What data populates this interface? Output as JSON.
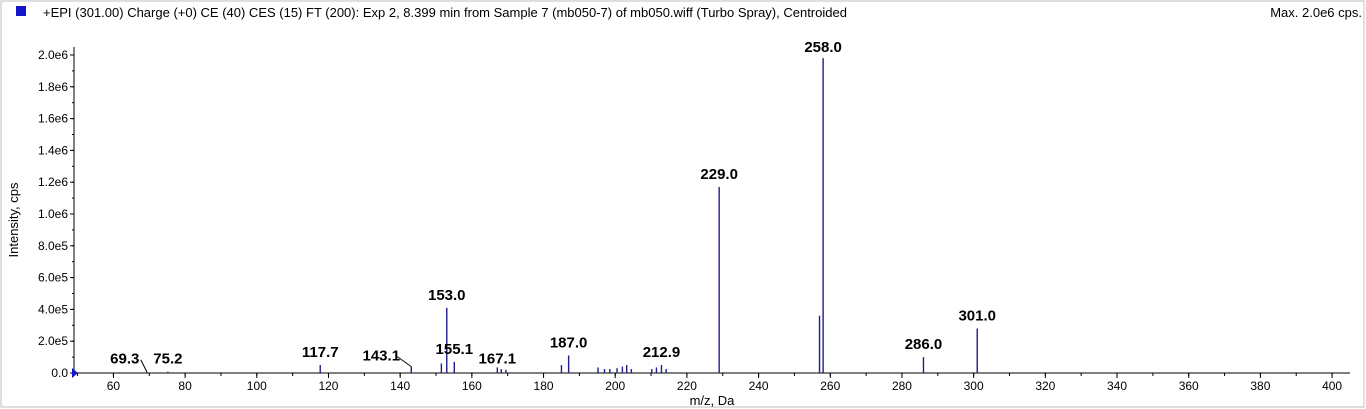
{
  "header": {
    "title": "+EPI (301.00) Charge (+0) CE (40) CES (15) FT (200): Exp 2, 8.399 min from Sample 7 (mb050-7) of mb050.wiff (Turbo Spray), Centroided",
    "max_label": "Max. 2.0e6 cps."
  },
  "colors": {
    "series": "#1e1e8c",
    "swatch": "#1414c8",
    "axis": "#000000",
    "border": "#bfbfbf"
  },
  "chart_data": {
    "type": "bar",
    "xlabel": "m/z, Da",
    "ylabel": "Intensity, cps",
    "xlim": [
      49,
      405
    ],
    "ylim": [
      0,
      2000000
    ],
    "x_ticks": [
      60,
      80,
      100,
      120,
      140,
      160,
      180,
      200,
      220,
      240,
      260,
      280,
      300,
      320,
      340,
      360,
      380,
      400
    ],
    "x_tick_labels": [
      "60",
      "80",
      "100",
      "120",
      "140",
      "160",
      "180",
      "200",
      "220",
      "240",
      "260",
      "280",
      "300",
      "320",
      "340",
      "360",
      "380",
      "400"
    ],
    "y_ticks": [
      0,
      200000,
      400000,
      600000,
      800000,
      1000000,
      1200000,
      1400000,
      1600000,
      1800000,
      2000000
    ],
    "y_tick_labels": [
      "0.0",
      "2.0e5",
      "4.0e5",
      "6.0e5",
      "8.0e5",
      "1.0e6",
      "1.2e6",
      "1.4e6",
      "1.6e6",
      "1.8e6",
      "2.0e6"
    ],
    "peaks": [
      {
        "mz": 69.3,
        "intensity": 8000
      },
      {
        "mz": 75.2,
        "intensity": 8000
      },
      {
        "mz": 117.7,
        "intensity": 50000
      },
      {
        "mz": 143.1,
        "intensity": 40000
      },
      {
        "mz": 151.5,
        "intensity": 60000
      },
      {
        "mz": 153.0,
        "intensity": 410000
      },
      {
        "mz": 155.1,
        "intensity": 70000
      },
      {
        "mz": 167.1,
        "intensity": 35000
      },
      {
        "mz": 168.2,
        "intensity": 25000
      },
      {
        "mz": 169.5,
        "intensity": 20000
      },
      {
        "mz": 185.0,
        "intensity": 50000
      },
      {
        "mz": 187.0,
        "intensity": 110000
      },
      {
        "mz": 195.2,
        "intensity": 35000
      },
      {
        "mz": 197.0,
        "intensity": 25000
      },
      {
        "mz": 198.5,
        "intensity": 25000
      },
      {
        "mz": 200.5,
        "intensity": 30000
      },
      {
        "mz": 202.0,
        "intensity": 40000
      },
      {
        "mz": 203.2,
        "intensity": 50000
      },
      {
        "mz": 204.5,
        "intensity": 25000
      },
      {
        "mz": 210.2,
        "intensity": 25000
      },
      {
        "mz": 211.5,
        "intensity": 35000
      },
      {
        "mz": 212.9,
        "intensity": 50000
      },
      {
        "mz": 214.2,
        "intensity": 25000
      },
      {
        "mz": 229.0,
        "intensity": 1170000
      },
      {
        "mz": 257.0,
        "intensity": 360000
      },
      {
        "mz": 258.0,
        "intensity": 1980000
      },
      {
        "mz": 286.0,
        "intensity": 100000
      },
      {
        "mz": 301.0,
        "intensity": 280000
      }
    ],
    "peak_labels": [
      {
        "text": "69.3",
        "mz": 69.3,
        "intensity": 8000
      },
      {
        "text": "75.2",
        "mz": 75.2,
        "intensity": 8000
      },
      {
        "text": "117.7",
        "mz": 117.7,
        "intensity": 50000
      },
      {
        "text": "143.1",
        "mz": 143.1,
        "intensity": 40000
      },
      {
        "text": "153.0",
        "mz": 153.0,
        "intensity": 410000
      },
      {
        "text": "155.1",
        "mz": 155.1,
        "intensity": 70000
      },
      {
        "text": "167.1",
        "mz": 167.1,
        "intensity": 35000
      },
      {
        "text": "187.0",
        "mz": 187.0,
        "intensity": 110000
      },
      {
        "text": "212.9",
        "mz": 212.9,
        "intensity": 50000
      },
      {
        "text": "229.0",
        "mz": 229.0,
        "intensity": 1170000
      },
      {
        "text": "258.0",
        "mz": 258.0,
        "intensity": 1980000
      },
      {
        "text": "286.0",
        "mz": 286.0,
        "intensity": 100000
      },
      {
        "text": "301.0",
        "mz": 301.0,
        "intensity": 280000
      }
    ]
  }
}
